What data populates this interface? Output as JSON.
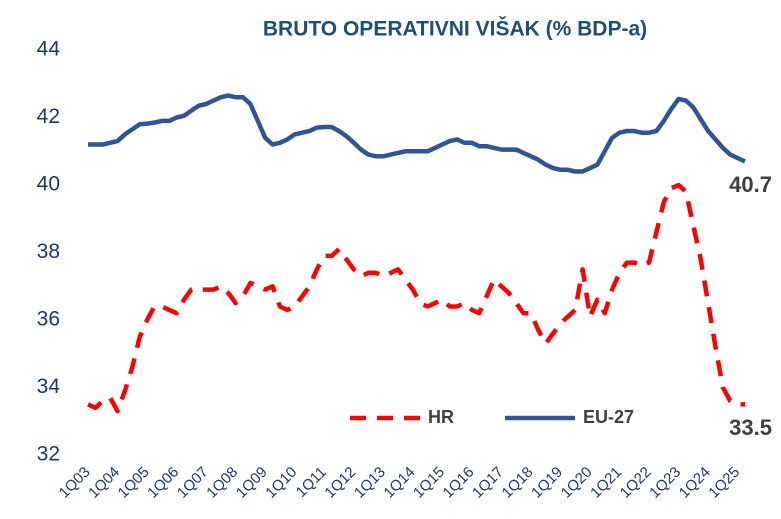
{
  "chart_data": {
    "type": "line",
    "title": "BRUTO OPERATIVNI VIŠAK (% BDP-a)",
    "categories": [
      "1Q03",
      null,
      null,
      null,
      "1Q04",
      null,
      null,
      null,
      "1Q05",
      null,
      null,
      null,
      "1Q06",
      null,
      null,
      null,
      "1Q07",
      null,
      null,
      null,
      "1Q08",
      null,
      null,
      null,
      "1Q09",
      null,
      null,
      null,
      "1Q10",
      null,
      null,
      null,
      "1Q11",
      null,
      null,
      null,
      "1Q12",
      null,
      null,
      null,
      "1Q13",
      null,
      null,
      null,
      "1Q14",
      null,
      null,
      null,
      "1Q15",
      null,
      null,
      null,
      "1Q16",
      null,
      null,
      null,
      "1Q17",
      null,
      null,
      null,
      "1Q18",
      null,
      null,
      null,
      "1Q19",
      null,
      null,
      null,
      "1Q20",
      null,
      null,
      null,
      "1Q21",
      null,
      null,
      null,
      "1Q22",
      null,
      null,
      null,
      "1Q23",
      null,
      null,
      null,
      "1Q24",
      null,
      null,
      null,
      "1Q25",
      null
    ],
    "series": [
      {
        "name": "HR",
        "color": "#ff0000",
        "dash": true,
        "values": [
          33.5,
          33.4,
          33.6,
          33.7,
          33.3,
          33.9,
          34.6,
          35.5,
          36.0,
          36.4,
          36.4,
          36.3,
          36.2,
          36.6,
          36.9,
          36.9,
          36.9,
          36.9,
          37.0,
          36.8,
          36.5,
          36.7,
          37.1,
          37.0,
          36.9,
          37.0,
          36.4,
          36.3,
          36.4,
          36.7,
          37.0,
          37.5,
          37.9,
          37.9,
          38.1,
          37.8,
          37.5,
          37.3,
          37.4,
          37.4,
          37.3,
          37.4,
          37.5,
          37.2,
          36.9,
          36.5,
          36.4,
          36.5,
          36.6,
          36.4,
          36.4,
          36.5,
          36.3,
          36.2,
          36.7,
          37.2,
          37.0,
          36.8,
          36.5,
          36.2,
          36.2,
          35.7,
          35.3,
          35.6,
          35.9,
          36.1,
          36.3,
          37.5,
          36.1,
          36.6,
          36.2,
          36.9,
          37.4,
          37.7,
          37.7,
          37.6,
          37.7,
          38.6,
          39.5,
          39.9,
          40.0,
          39.8,
          38.8,
          37.8,
          36.5,
          35.2,
          34.0,
          33.6,
          33.5,
          33.5
        ]
      },
      {
        "name": "EU-27",
        "color": "#2f5597",
        "dash": false,
        "values": [
          41.2,
          41.2,
          41.2,
          41.25,
          41.3,
          41.5,
          41.65,
          41.8,
          41.82,
          41.85,
          41.9,
          41.9,
          42.0,
          42.05,
          42.2,
          42.35,
          42.4,
          42.5,
          42.6,
          42.65,
          42.6,
          42.6,
          42.4,
          41.9,
          41.4,
          41.2,
          41.25,
          41.35,
          41.5,
          41.55,
          41.6,
          41.7,
          41.72,
          41.72,
          41.6,
          41.45,
          41.25,
          41.05,
          40.9,
          40.85,
          40.85,
          40.9,
          40.95,
          41.0,
          41.0,
          41.0,
          41.0,
          41.1,
          41.2,
          41.3,
          41.35,
          41.25,
          41.25,
          41.15,
          41.15,
          41.1,
          41.05,
          41.05,
          41.05,
          40.95,
          40.85,
          40.75,
          40.6,
          40.5,
          40.45,
          40.45,
          40.4,
          40.4,
          40.5,
          40.6,
          41.0,
          41.4,
          41.55,
          41.6,
          41.6,
          41.55,
          41.55,
          41.6,
          41.9,
          42.25,
          42.55,
          42.5,
          42.3,
          41.95,
          41.6,
          41.35,
          41.1,
          40.9,
          40.8,
          40.7
        ]
      }
    ],
    "ylim": [
      32,
      44
    ],
    "yticks": [
      32,
      34,
      36,
      38,
      40,
      42,
      44
    ],
    "grid": false,
    "legend": "bottom"
  }
}
